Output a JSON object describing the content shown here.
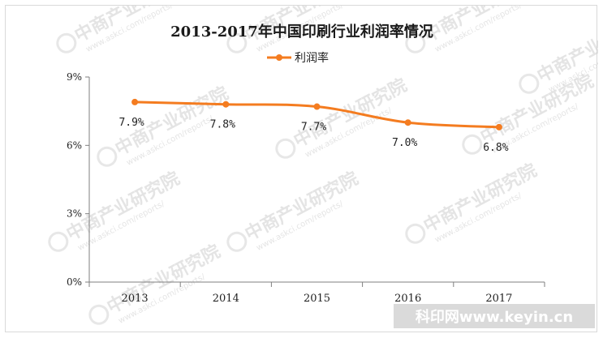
{
  "chart_data": {
    "type": "line",
    "title": "2013-2017年中国印刷行业利润率情况",
    "categories": [
      "2013",
      "2014",
      "2015",
      "2016",
      "2017"
    ],
    "series": [
      {
        "name": "利润率",
        "values": [
          7.9,
          7.8,
          7.7,
          7.0,
          6.8
        ],
        "labels": [
          "7.9%",
          "7.8%",
          "7.7%",
          "7.0%",
          "6.8%"
        ]
      }
    ],
    "yticks": [
      "0%",
      "3%",
      "6%",
      "9%"
    ],
    "ylim": [
      0,
      9
    ],
    "xlabel": "",
    "ylabel": "",
    "legend_position": "top-center",
    "grid": false
  },
  "colors": {
    "series": "#f47c20",
    "axis": "#7f7f7f"
  },
  "watermark": {
    "brand": "中商产业研究院",
    "url": "www.askci.com/reports/",
    "site": "科印网www.keyin.cn"
  }
}
